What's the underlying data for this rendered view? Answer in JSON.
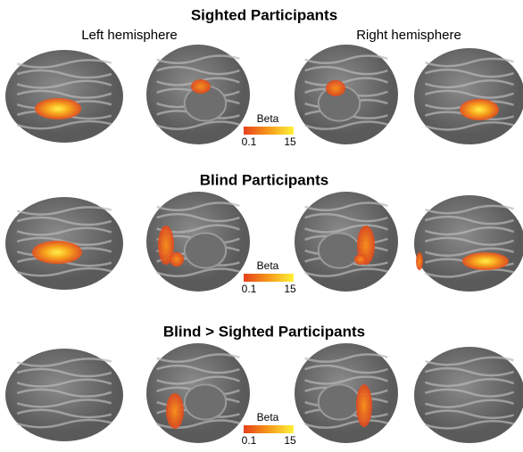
{
  "header": {
    "left_label": "Left hemisphere",
    "right_label": "Right hemisphere"
  },
  "panels": [
    {
      "title": "Sighted Participants",
      "colorbar": {
        "label": "Beta",
        "min": 0.1,
        "max": 15
      }
    },
    {
      "title": "Blind Participants",
      "colorbar": {
        "label": "Beta",
        "min": 0.1,
        "max": 15
      }
    },
    {
      "title": "Blind > Sighted Participants",
      "colorbar": {
        "label": "Beta",
        "min": 0.1,
        "max": 15
      }
    }
  ]
}
